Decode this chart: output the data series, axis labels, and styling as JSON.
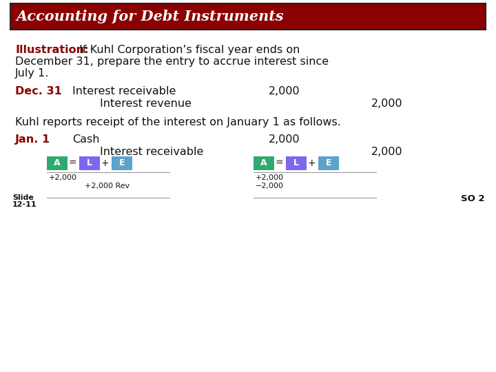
{
  "title": "Accounting for Debt Instruments",
  "title_bg": "#8B0000",
  "title_text_color": "#FFFFFF",
  "body_bg": "#FFFFFF",
  "dark_red": "#8B0000",
  "black": "#111111",
  "slide_label": "Slide\n12-11",
  "so_label": "SO 2",
  "ale_green": "#2EAA6E",
  "ale_purple": "#7B68EE",
  "ale_blue": "#5BA3C9",
  "sep_line_color": "#999999"
}
